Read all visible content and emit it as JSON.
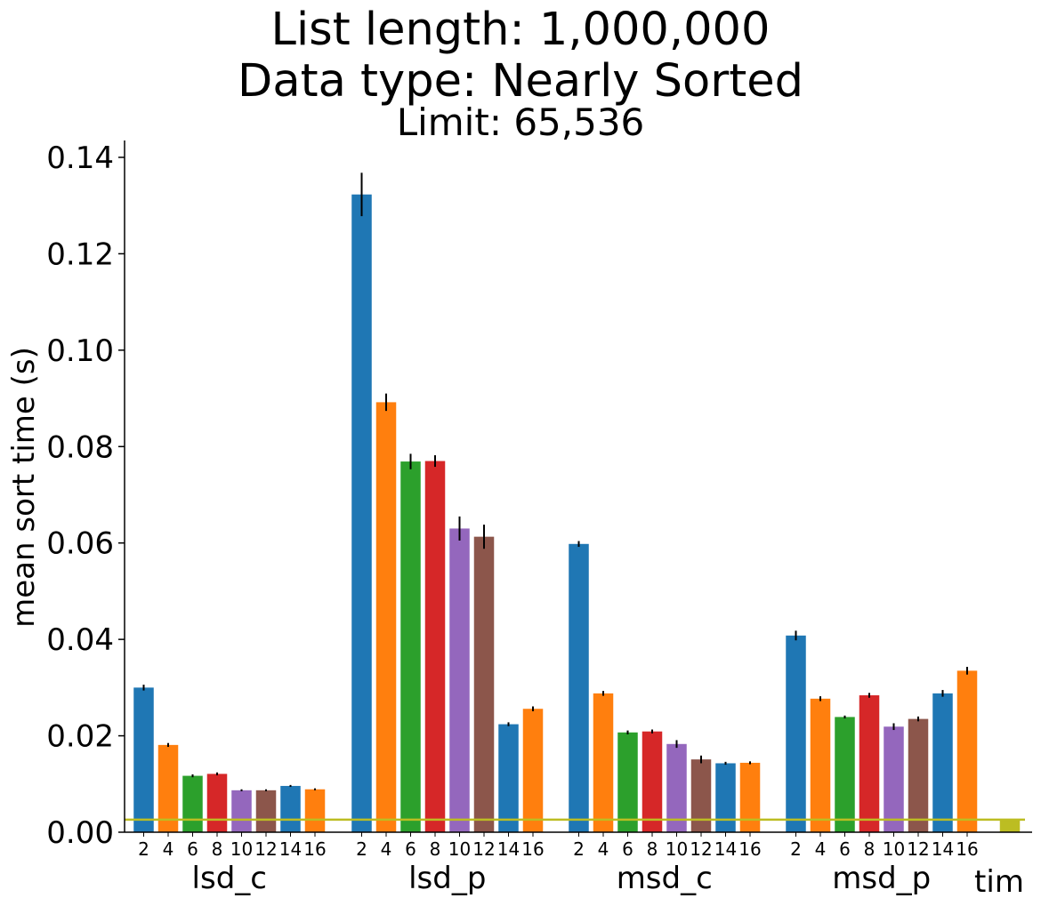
{
  "chart_data": {
    "type": "bar",
    "title_lines": [
      "List length: 1,000,000",
      "Data type: Nearly Sorted"
    ],
    "subtitle": "Limit: 65,536",
    "xlabel": "",
    "ylabel": "mean sort time (s)",
    "ylim": [
      0,
      0.1435
    ],
    "yticks": [
      0.0,
      0.02,
      0.04,
      0.06,
      0.08,
      0.1,
      0.12,
      0.14
    ],
    "ytick_labels": [
      "0.00",
      "0.02",
      "0.04",
      "0.06",
      "0.08",
      "0.10",
      "0.12",
      "0.14"
    ],
    "grid": false,
    "bar_tick_labels": [
      "2",
      "4",
      "6",
      "8",
      "10",
      "12",
      "14",
      "16"
    ],
    "palette": [
      "#1f77b4",
      "#ff7f0e",
      "#2ca02c",
      "#d62728",
      "#9467bd",
      "#8c564b",
      "#1f77b4",
      "#ff7f0e"
    ],
    "groups": [
      {
        "name": "lsd_c",
        "values": [
          0.03,
          0.0181,
          0.0117,
          0.0121,
          0.0087,
          0.0087,
          0.0096,
          0.0089
        ],
        "errors": [
          0.0006,
          0.0004,
          0.0003,
          0.0003,
          0.0002,
          0.0002,
          0.0002,
          0.0002
        ]
      },
      {
        "name": "lsd_p",
        "values": [
          0.1323,
          0.0892,
          0.0769,
          0.077,
          0.063,
          0.0613,
          0.0224,
          0.0256
        ],
        "errors": [
          0.0045,
          0.0018,
          0.0016,
          0.0012,
          0.0025,
          0.0025,
          0.0004,
          0.0005
        ]
      },
      {
        "name": "msd_c",
        "values": [
          0.0598,
          0.0288,
          0.0207,
          0.0209,
          0.0183,
          0.0151,
          0.0143,
          0.0144
        ],
        "errors": [
          0.0006,
          0.0005,
          0.0004,
          0.0004,
          0.0008,
          0.0008,
          0.0003,
          0.0003
        ]
      },
      {
        "name": "msd_p",
        "values": [
          0.0408,
          0.0277,
          0.0239,
          0.0284,
          0.0219,
          0.0235,
          0.0288,
          0.0335
        ],
        "errors": [
          0.001,
          0.0005,
          0.0003,
          0.0005,
          0.0007,
          0.0005,
          0.0007,
          0.0008
        ]
      }
    ],
    "extra_bar": {
      "name": "tim",
      "value": 0.0026,
      "error": 0.0001,
      "color": "#bcbd22"
    },
    "reference_line": {
      "value": 0.0026,
      "color": "#bcbd22"
    }
  }
}
